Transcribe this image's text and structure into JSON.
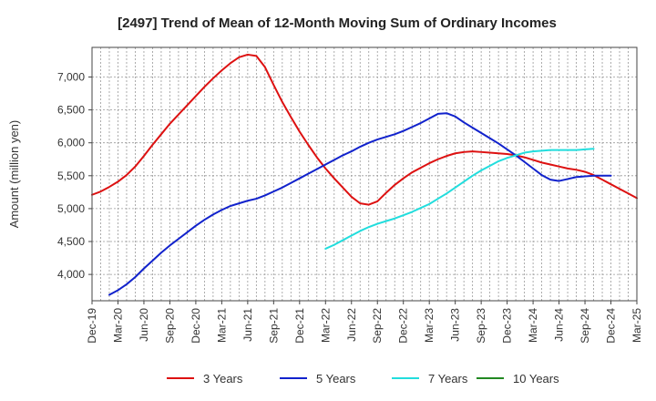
{
  "chart_data": {
    "type": "line",
    "title": "[2497]  Trend of Mean of 12-Month Moving Sum of Ordinary Incomes",
    "xlabel": "",
    "ylabel": "Amount (million yen)",
    "x_ticks": [
      "Dec-19",
      "Mar-20",
      "Jun-20",
      "Sep-20",
      "Dec-20",
      "Mar-21",
      "Jun-21",
      "Sep-21",
      "Dec-21",
      "Mar-22",
      "Jun-22",
      "Sep-22",
      "Dec-22",
      "Mar-23",
      "Jun-23",
      "Sep-23",
      "Dec-23",
      "Mar-24",
      "Jun-24",
      "Sep-24",
      "Dec-24",
      "Mar-25"
    ],
    "y_ticks": [
      4000,
      4500,
      5000,
      5500,
      6000,
      6500,
      7000
    ],
    "y_tick_labels": [
      "4,000",
      "4,500",
      "5,000",
      "5,500",
      "6,000",
      "6,500",
      "7,000"
    ],
    "ylim": [
      3600,
      7450
    ],
    "x_range_months": [
      0,
      63
    ],
    "grid": true,
    "legend_position": "bottom",
    "series": [
      {
        "name": "3 Years",
        "color": "#dd1111",
        "points": [
          [
            0,
            5210
          ],
          [
            1,
            5260
          ],
          [
            2,
            5330
          ],
          [
            3,
            5410
          ],
          [
            4,
            5510
          ],
          [
            5,
            5640
          ],
          [
            6,
            5800
          ],
          [
            7,
            5970
          ],
          [
            8,
            6130
          ],
          [
            9,
            6290
          ],
          [
            10,
            6430
          ],
          [
            11,
            6570
          ],
          [
            12,
            6710
          ],
          [
            13,
            6850
          ],
          [
            14,
            6980
          ],
          [
            15,
            7100
          ],
          [
            16,
            7210
          ],
          [
            17,
            7300
          ],
          [
            18,
            7340
          ],
          [
            19,
            7320
          ],
          [
            20,
            7150
          ],
          [
            21,
            6880
          ],
          [
            22,
            6620
          ],
          [
            23,
            6390
          ],
          [
            24,
            6170
          ],
          [
            25,
            5970
          ],
          [
            26,
            5780
          ],
          [
            27,
            5610
          ],
          [
            28,
            5460
          ],
          [
            29,
            5320
          ],
          [
            30,
            5180
          ],
          [
            31,
            5080
          ],
          [
            32,
            5060
          ],
          [
            33,
            5110
          ],
          [
            34,
            5240
          ],
          [
            35,
            5360
          ],
          [
            36,
            5460
          ],
          [
            37,
            5550
          ],
          [
            38,
            5620
          ],
          [
            39,
            5690
          ],
          [
            40,
            5750
          ],
          [
            41,
            5800
          ],
          [
            42,
            5840
          ],
          [
            43,
            5860
          ],
          [
            44,
            5870
          ],
          [
            45,
            5860
          ],
          [
            46,
            5850
          ],
          [
            47,
            5840
          ],
          [
            48,
            5830
          ],
          [
            49,
            5810
          ],
          [
            50,
            5780
          ],
          [
            51,
            5740
          ],
          [
            52,
            5700
          ],
          [
            53,
            5670
          ],
          [
            54,
            5640
          ],
          [
            55,
            5610
          ],
          [
            56,
            5590
          ],
          [
            57,
            5560
          ],
          [
            58,
            5510
          ],
          [
            59,
            5440
          ],
          [
            60,
            5370
          ],
          [
            61,
            5300
          ],
          [
            62,
            5230
          ],
          [
            63,
            5160
          ]
        ]
      },
      {
        "name": "5 Years",
        "color": "#1122cc",
        "points": [
          [
            2,
            3690
          ],
          [
            3,
            3760
          ],
          [
            4,
            3850
          ],
          [
            5,
            3960
          ],
          [
            6,
            4090
          ],
          [
            7,
            4210
          ],
          [
            8,
            4330
          ],
          [
            9,
            4440
          ],
          [
            10,
            4540
          ],
          [
            11,
            4640
          ],
          [
            12,
            4740
          ],
          [
            13,
            4830
          ],
          [
            14,
            4910
          ],
          [
            15,
            4980
          ],
          [
            16,
            5040
          ],
          [
            17,
            5080
          ],
          [
            18,
            5120
          ],
          [
            19,
            5150
          ],
          [
            20,
            5200
          ],
          [
            21,
            5260
          ],
          [
            22,
            5320
          ],
          [
            23,
            5390
          ],
          [
            24,
            5460
          ],
          [
            25,
            5530
          ],
          [
            26,
            5600
          ],
          [
            27,
            5670
          ],
          [
            28,
            5740
          ],
          [
            29,
            5810
          ],
          [
            30,
            5870
          ],
          [
            31,
            5940
          ],
          [
            32,
            6000
          ],
          [
            33,
            6050
          ],
          [
            34,
            6090
          ],
          [
            35,
            6130
          ],
          [
            36,
            6180
          ],
          [
            37,
            6240
          ],
          [
            38,
            6300
          ],
          [
            39,
            6370
          ],
          [
            40,
            6440
          ],
          [
            41,
            6450
          ],
          [
            42,
            6400
          ],
          [
            43,
            6310
          ],
          [
            44,
            6230
          ],
          [
            45,
            6150
          ],
          [
            46,
            6070
          ],
          [
            47,
            5990
          ],
          [
            48,
            5900
          ],
          [
            49,
            5810
          ],
          [
            50,
            5710
          ],
          [
            51,
            5610
          ],
          [
            52,
            5510
          ],
          [
            53,
            5440
          ],
          [
            54,
            5420
          ],
          [
            55,
            5450
          ],
          [
            56,
            5480
          ],
          [
            57,
            5490
          ],
          [
            58,
            5500
          ],
          [
            59,
            5500
          ],
          [
            60,
            5500
          ]
        ]
      },
      {
        "name": "7 Years",
        "color": "#22dddd",
        "points": [
          [
            27,
            4390
          ],
          [
            28,
            4450
          ],
          [
            29,
            4520
          ],
          [
            30,
            4590
          ],
          [
            31,
            4660
          ],
          [
            32,
            4720
          ],
          [
            33,
            4770
          ],
          [
            34,
            4810
          ],
          [
            35,
            4850
          ],
          [
            36,
            4900
          ],
          [
            37,
            4950
          ],
          [
            38,
            5010
          ],
          [
            39,
            5070
          ],
          [
            40,
            5150
          ],
          [
            41,
            5230
          ],
          [
            42,
            5320
          ],
          [
            43,
            5410
          ],
          [
            44,
            5500
          ],
          [
            45,
            5580
          ],
          [
            46,
            5650
          ],
          [
            47,
            5720
          ],
          [
            48,
            5770
          ],
          [
            49,
            5810
          ],
          [
            50,
            5850
          ],
          [
            51,
            5870
          ],
          [
            52,
            5880
          ],
          [
            53,
            5890
          ],
          [
            54,
            5890
          ],
          [
            55,
            5890
          ],
          [
            56,
            5890
          ],
          [
            57,
            5900
          ],
          [
            58,
            5910
          ]
        ]
      },
      {
        "name": "10 Years",
        "color": "#228822",
        "points": []
      }
    ]
  }
}
